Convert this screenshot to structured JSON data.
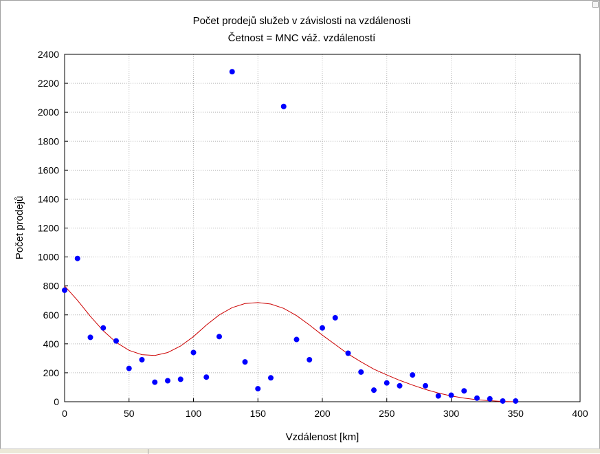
{
  "chart_data": {
    "type": "scatter",
    "title": "Počet prodejů služeb v závislosti na vzdálenosti",
    "subtitle": "Četnost = MNC váž. vzdáleností",
    "xlabel": "Vzdálenost [km]",
    "ylabel": "Počet prodejů",
    "xlim": [
      0,
      400
    ],
    "ylim": [
      0,
      2400
    ],
    "xticks": [
      "0",
      "50",
      "100",
      "150",
      "200",
      "250",
      "300",
      "350",
      "400"
    ],
    "yticks": [
      "0",
      "200",
      "400",
      "600",
      "800",
      "1000",
      "1200",
      "1400",
      "1600",
      "1800",
      "2000",
      "2200",
      "2400"
    ],
    "grid": true,
    "point_color": "#0000ff",
    "curve_color": "#cc0000",
    "points": [
      {
        "x": 0,
        "y": 770
      },
      {
        "x": 10,
        "y": 990
      },
      {
        "x": 20,
        "y": 445
      },
      {
        "x": 30,
        "y": 510
      },
      {
        "x": 40,
        "y": 420
      },
      {
        "x": 50,
        "y": 230
      },
      {
        "x": 60,
        "y": 290
      },
      {
        "x": 70,
        "y": 135
      },
      {
        "x": 80,
        "y": 145
      },
      {
        "x": 90,
        "y": 155
      },
      {
        "x": 100,
        "y": 340
      },
      {
        "x": 110,
        "y": 170
      },
      {
        "x": 120,
        "y": 450
      },
      {
        "x": 130,
        "y": 2280
      },
      {
        "x": 140,
        "y": 275
      },
      {
        "x": 150,
        "y": 90
      },
      {
        "x": 160,
        "y": 165
      },
      {
        "x": 170,
        "y": 2040
      },
      {
        "x": 180,
        "y": 430
      },
      {
        "x": 190,
        "y": 290
      },
      {
        "x": 200,
        "y": 510
      },
      {
        "x": 210,
        "y": 580
      },
      {
        "x": 220,
        "y": 335
      },
      {
        "x": 230,
        "y": 205
      },
      {
        "x": 240,
        "y": 80
      },
      {
        "x": 250,
        "y": 130
      },
      {
        "x": 260,
        "y": 110
      },
      {
        "x": 270,
        "y": 185
      },
      {
        "x": 280,
        "y": 110
      },
      {
        "x": 290,
        "y": 40
      },
      {
        "x": 300,
        "y": 45
      },
      {
        "x": 310,
        "y": 75
      },
      {
        "x": 320,
        "y": 25
      },
      {
        "x": 330,
        "y": 20
      },
      {
        "x": 340,
        "y": 5
      },
      {
        "x": 350,
        "y": 5
      }
    ],
    "fit_curve": [
      {
        "x": 0,
        "y": 800
      },
      {
        "x": 10,
        "y": 700
      },
      {
        "x": 20,
        "y": 590
      },
      {
        "x": 30,
        "y": 490
      },
      {
        "x": 40,
        "y": 410
      },
      {
        "x": 50,
        "y": 355
      },
      {
        "x": 60,
        "y": 325
      },
      {
        "x": 70,
        "y": 320
      },
      {
        "x": 80,
        "y": 340
      },
      {
        "x": 90,
        "y": 385
      },
      {
        "x": 100,
        "y": 450
      },
      {
        "x": 110,
        "y": 530
      },
      {
        "x": 120,
        "y": 600
      },
      {
        "x": 130,
        "y": 650
      },
      {
        "x": 140,
        "y": 678
      },
      {
        "x": 150,
        "y": 685
      },
      {
        "x": 160,
        "y": 675
      },
      {
        "x": 170,
        "y": 645
      },
      {
        "x": 180,
        "y": 595
      },
      {
        "x": 190,
        "y": 530
      },
      {
        "x": 200,
        "y": 460
      },
      {
        "x": 210,
        "y": 395
      },
      {
        "x": 220,
        "y": 330
      },
      {
        "x": 230,
        "y": 275
      },
      {
        "x": 240,
        "y": 225
      },
      {
        "x": 250,
        "y": 185
      },
      {
        "x": 260,
        "y": 148
      },
      {
        "x": 270,
        "y": 115
      },
      {
        "x": 280,
        "y": 85
      },
      {
        "x": 290,
        "y": 60
      },
      {
        "x": 300,
        "y": 40
      },
      {
        "x": 310,
        "y": 25
      },
      {
        "x": 320,
        "y": 14
      },
      {
        "x": 330,
        "y": 7
      },
      {
        "x": 340,
        "y": 2
      },
      {
        "x": 350,
        "y": 0
      }
    ]
  }
}
